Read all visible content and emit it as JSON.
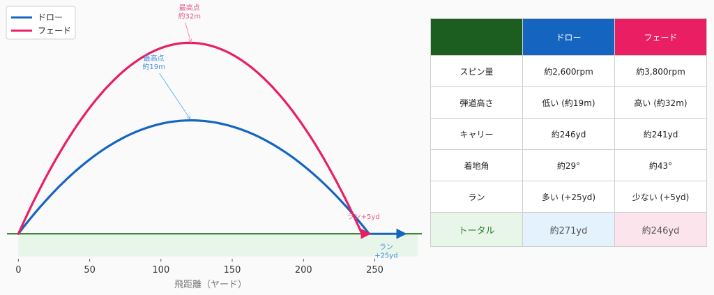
{
  "chart_data": {
    "type": "line",
    "xlabel": "飛距離（ヤード）",
    "ylabel": "",
    "xlim": [
      -8,
      283
    ],
    "ylim": [
      -5,
      38
    ],
    "xticks": [
      0,
      50,
      100,
      150,
      200,
      250
    ],
    "legend_position": "top-left",
    "series": [
      {
        "name": "ドロー",
        "color": "#1565c0",
        "carry_yd": 246,
        "apex_x_yd": 121,
        "apex_height_m": 19,
        "run_end_yd": 271,
        "annotation_apex": [
          "最高点",
          "約19m"
        ],
        "annotation_run": [
          "ラン",
          "+25yd"
        ]
      },
      {
        "name": "フェード",
        "color": "#e91e63",
        "carry_yd": 241,
        "apex_x_yd": 120,
        "apex_height_m": 32,
        "run_end_yd": 246,
        "annotation_apex": [
          "最高点",
          "約32m"
        ],
        "annotation_run": [
          "ラン+5yd"
        ]
      }
    ],
    "ground_color": "#2e7d32",
    "fairway_band": [
      0,
      280
    ]
  },
  "table": {
    "header": {
      "blank": "",
      "draw": "ドロー",
      "fade": "フェード"
    },
    "header_colors": {
      "blank": "#1b5e20",
      "draw": "#1565c0",
      "fade": "#e91e63"
    },
    "rows": [
      {
        "label": "スピン量",
        "draw": "約2,600rpm",
        "fade": "約3,800rpm"
      },
      {
        "label": "弾道高さ",
        "draw": "低い (約19m)",
        "fade": "高い (約32m)"
      },
      {
        "label": "キャリー",
        "draw": "約246yd",
        "fade": "約241yd"
      },
      {
        "label": "着地角",
        "draw": "約29°",
        "fade": "約43°"
      },
      {
        "label": "ラン",
        "draw": "多い (+25yd)",
        "fade": "少ない (+5yd)"
      }
    ],
    "total": {
      "label": "トータル",
      "draw": "約271yd",
      "fade": "約246yd"
    },
    "total_colors": {
      "label_bg": "#e8f5e9",
      "label_fg": "#2e7d32",
      "draw_bg": "#e3f2fd",
      "fade_bg": "#fce4ec",
      "value_fg": "#555555"
    }
  }
}
